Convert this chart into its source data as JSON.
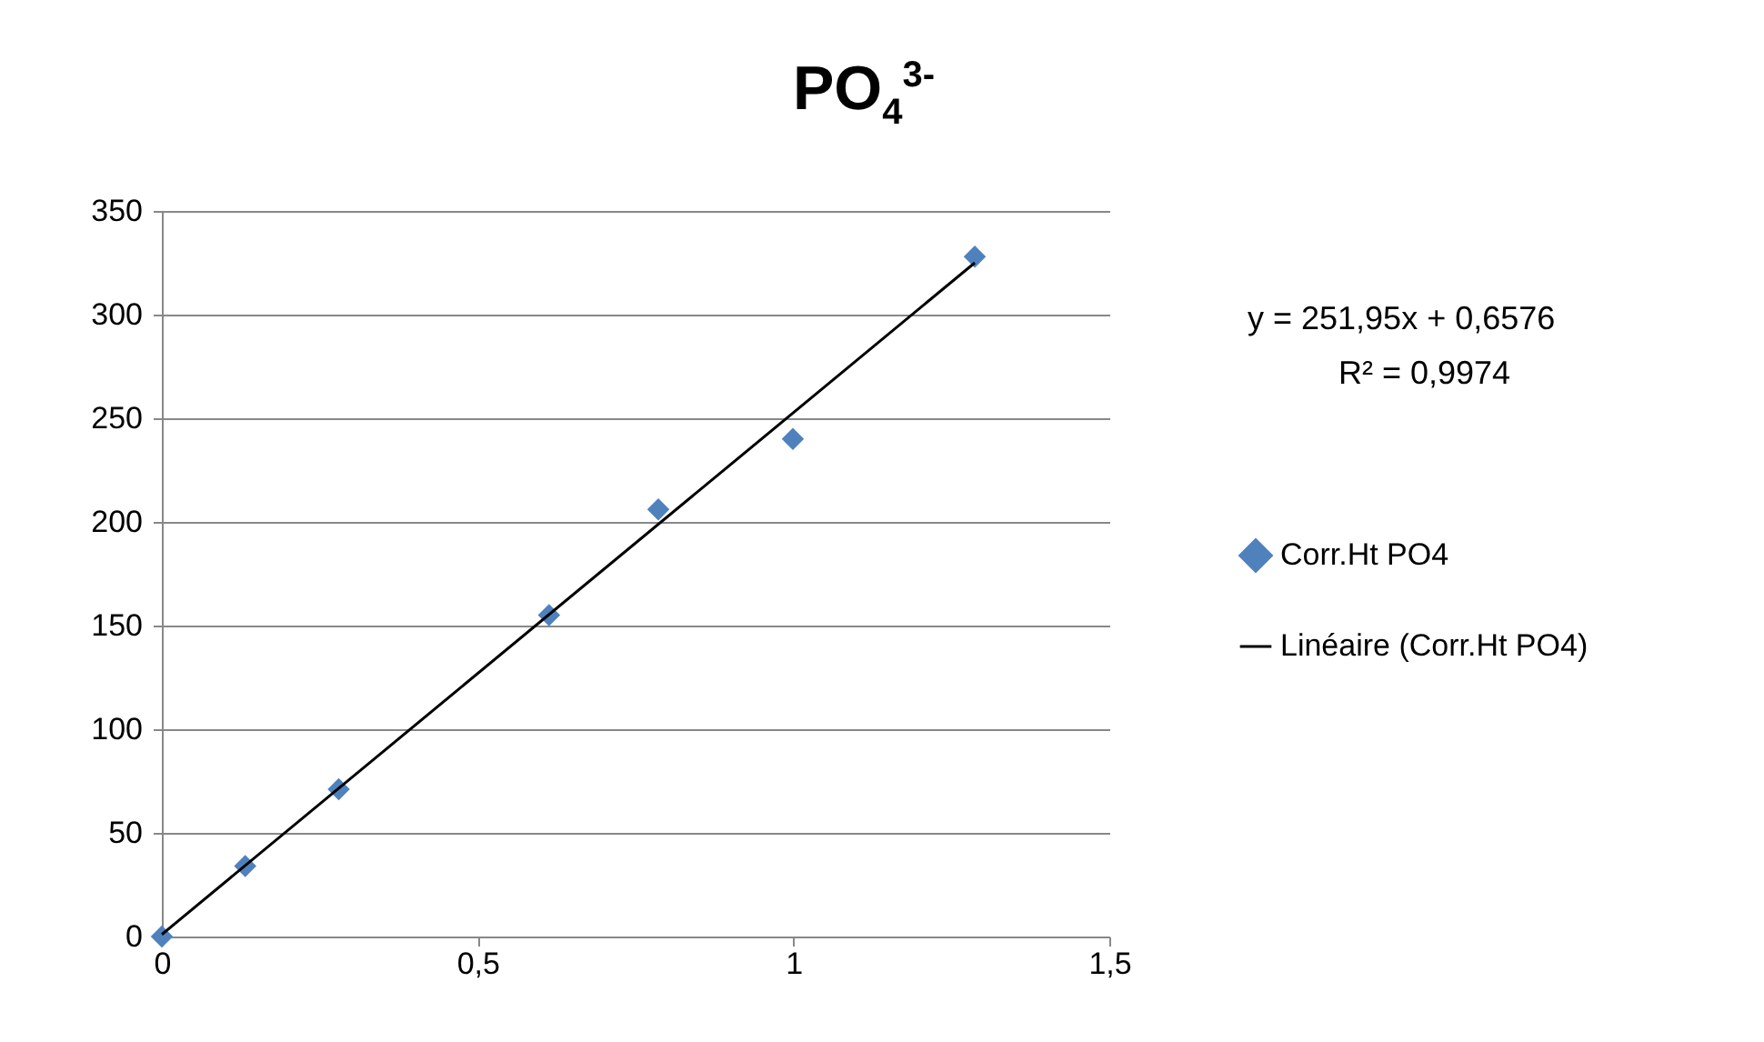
{
  "chart_data": {
    "type": "scatter",
    "title": "PO$_{4}$$^{3-}$",
    "xlim": [
      0,
      1.5
    ],
    "xticks": [
      0,
      {
        "value": 0.5,
        "label": "0,5"
      },
      1,
      {
        "value": 1.5,
        "label": "1,5"
      }
    ],
    "ylim": [
      0,
      350
    ],
    "yticks": [
      0,
      50,
      100,
      150,
      200,
      250,
      300,
      350
    ],
    "grid": "y",
    "legend": "right",
    "series": [
      {
        "name": "Corr.Ht PO4",
        "marker": "diamond",
        "color": "#4f81bd",
        "x": [
          0,
          0.132,
          0.28,
          0.613,
          0.786,
          0.999,
          1.287
        ],
        "values": [
          0,
          34,
          71,
          155,
          206,
          240,
          328
        ]
      },
      {
        "name": "Linéaire (Corr.Ht PO4)",
        "type": "line",
        "color": "#000000",
        "x": [
          0,
          1.287
        ],
        "values": [
          1,
          325
        ],
        "line_style": "solid",
        "marker": "none"
      }
    ],
    "annotations": [
      "y = 251,95x + 0,6576",
      "R² = 0,9974"
    ]
  }
}
